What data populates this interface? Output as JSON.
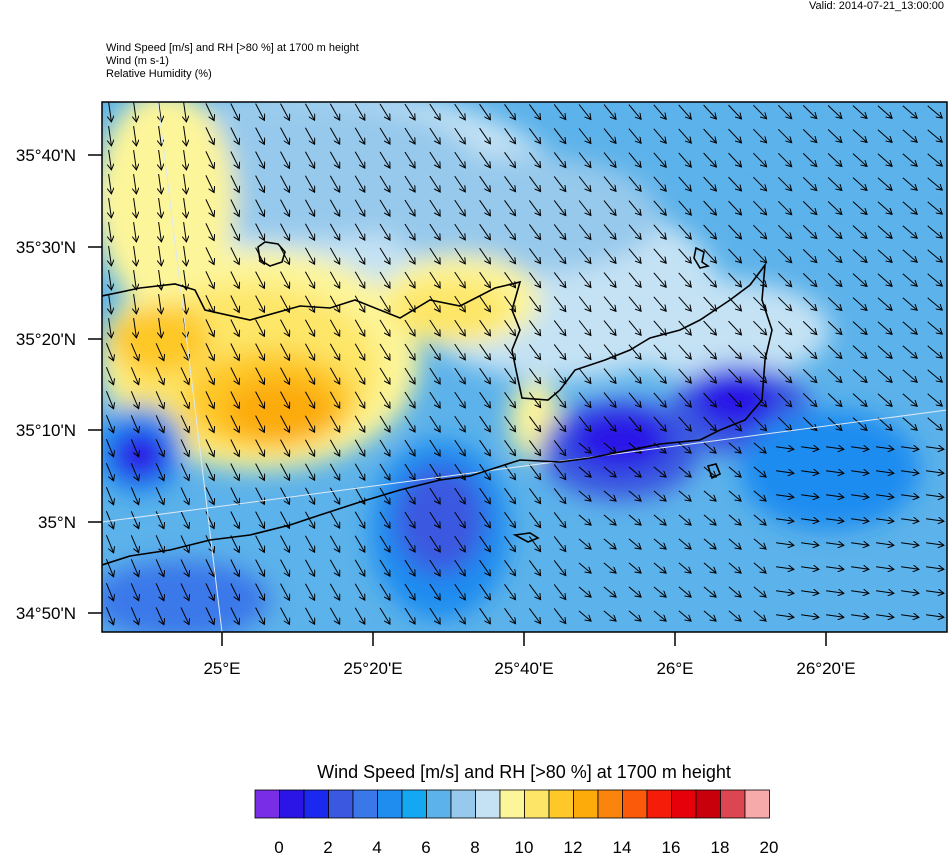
{
  "header": {
    "valid": "Valid: 2014-07-21_13:00:00",
    "lines": [
      "Wind Speed [m/s] and RH [>80 %] at 1700 m height",
      "Wind   (m s-1)",
      "Relative Humidity   (%)"
    ]
  },
  "map": {
    "region": "Crete",
    "lat_labels": [
      "35°40'N",
      "35°30'N",
      "35°20'N",
      "35°10'N",
      "35°N",
      "34°50'N"
    ],
    "lon_labels": [
      "25°E",
      "25°20'E",
      "25°40'E",
      "26°E",
      "26°20'E"
    ],
    "field": "Wind speed at 1700 m with wind vectors",
    "wind_direction": "predominantly from the north-northwest (arrows pointing south-southeast)"
  },
  "colorbar": {
    "title": "Wind Speed [m/s] and RH [>80 %] at 1700 m height",
    "tick_labels": [
      "0",
      "2",
      "4",
      "6",
      "8",
      "10",
      "12",
      "14",
      "16",
      "18",
      "20"
    ],
    "colors": [
      "#7a2de6",
      "#2a14e6",
      "#1a28f0",
      "#3a58e0",
      "#3a78ea",
      "#1f8cf0",
      "#14a8f2",
      "#5cb2ea",
      "#96c9ec",
      "#c4e2f4",
      "#fdf59a",
      "#fde667",
      "#fec828",
      "#fcab0a",
      "#fb840c",
      "#fa5a0a",
      "#f51c0a",
      "#e6000a",
      "#c8000c",
      "#dc4650",
      "#f6aaaa"
    ]
  }
}
